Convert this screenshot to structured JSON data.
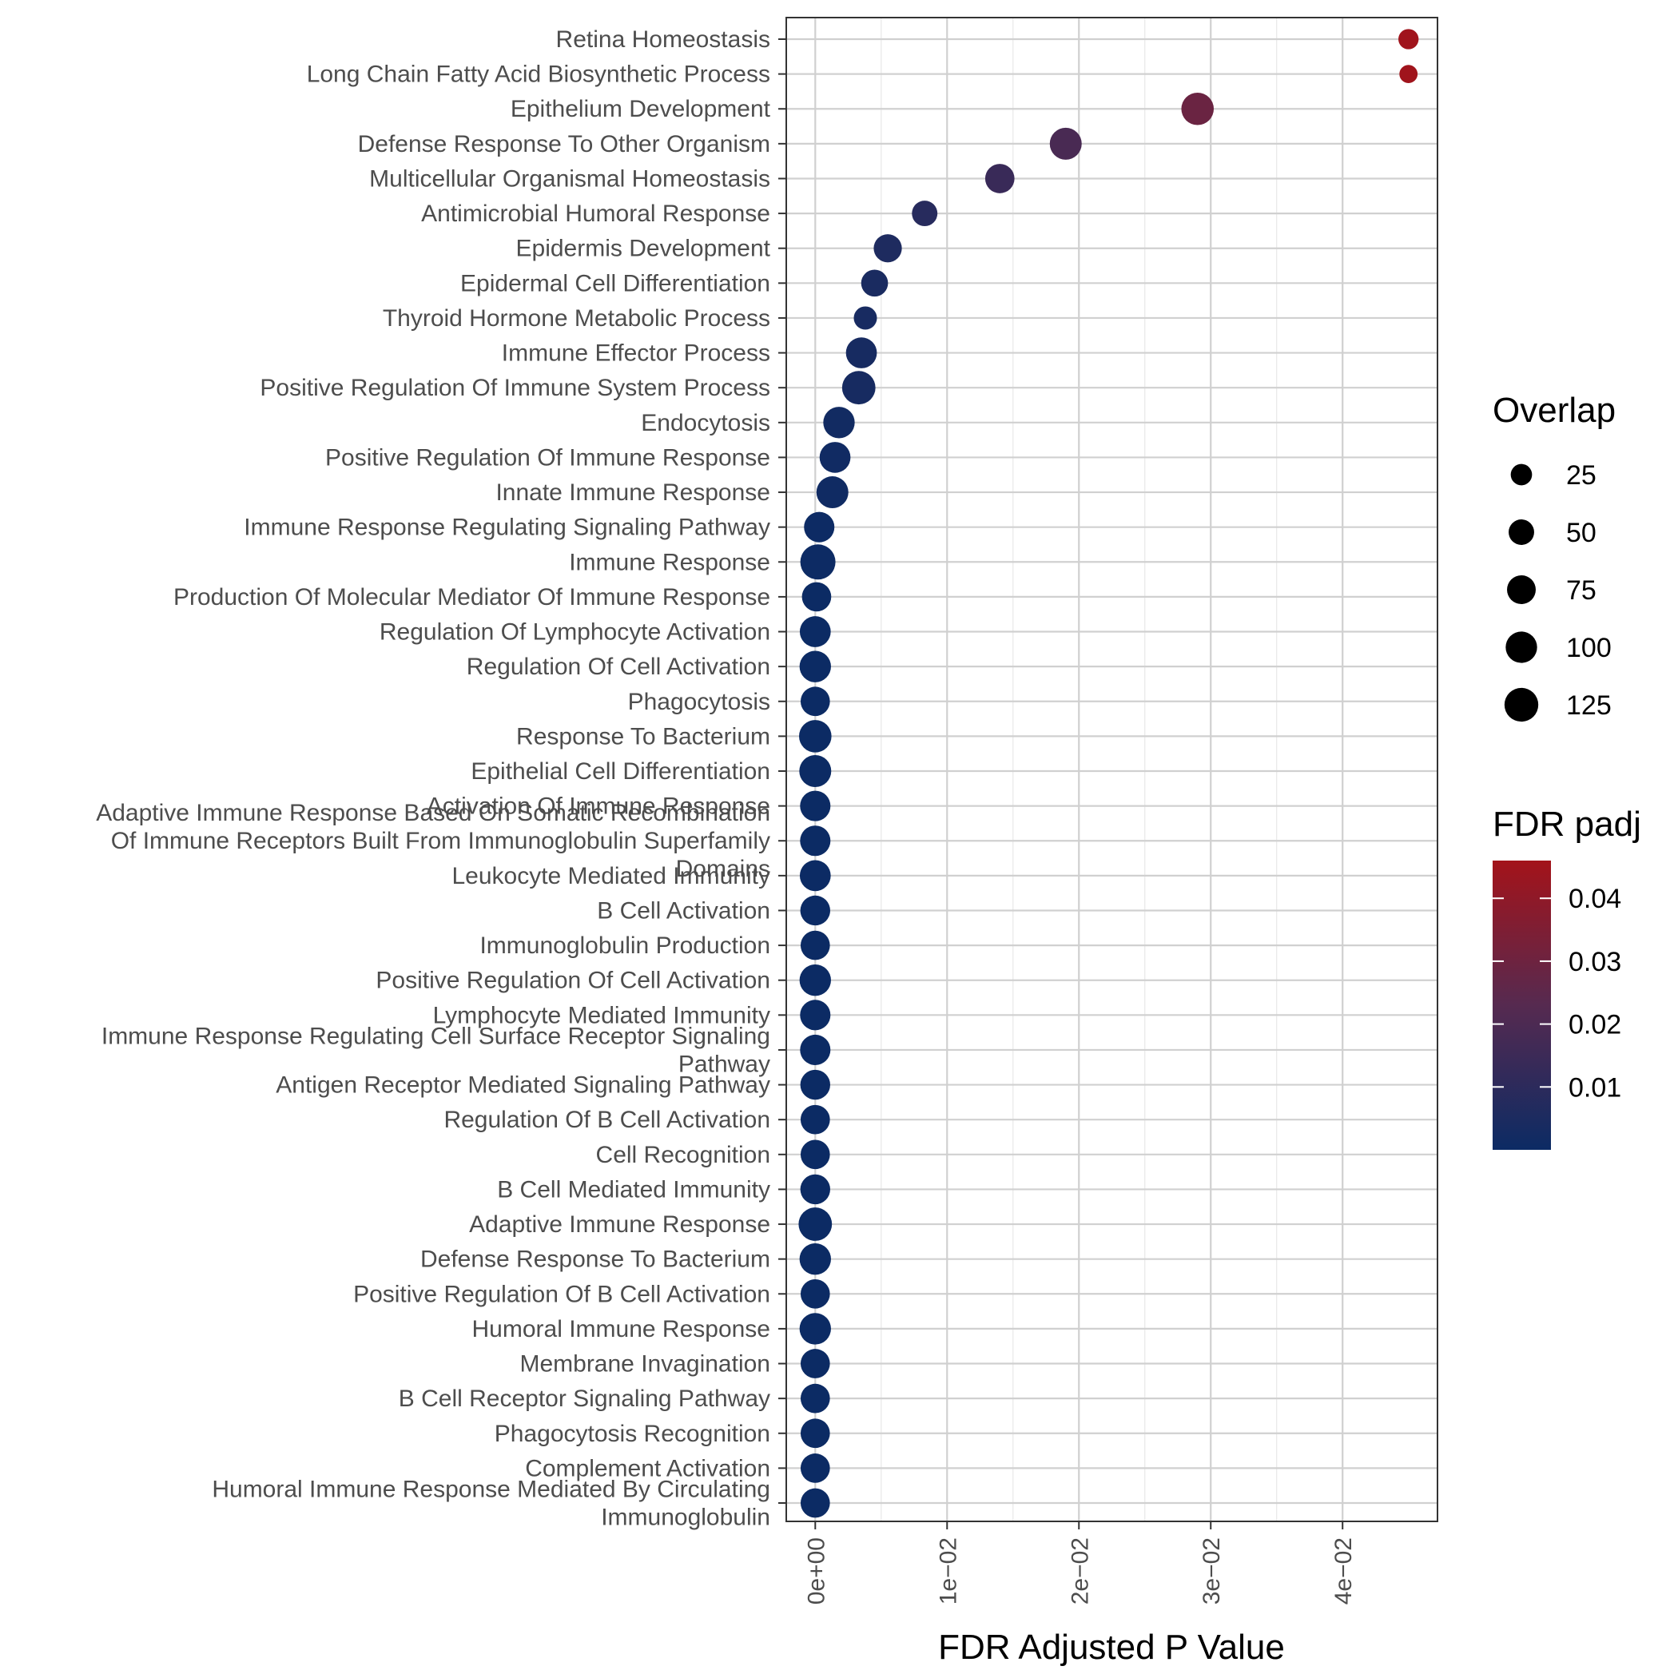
{
  "chart_data": {
    "type": "scatter",
    "xlabel": "FDR Adjusted P Value",
    "xlim": [
      -0.0022,
      0.0472
    ],
    "x_ticks": [
      {
        "value": 0,
        "label": "0e+00"
      },
      {
        "value": 0.01,
        "label": "1e−02"
      },
      {
        "value": 0.02,
        "label": "2e−02"
      },
      {
        "value": 0.03,
        "label": "3e−02"
      },
      {
        "value": 0.04,
        "label": "4e−02"
      }
    ],
    "grid": true,
    "colors": {
      "low": "#0c2b64",
      "mid": "#562a50",
      "high": "#a3131a"
    },
    "size_legend": {
      "title": "Overlap",
      "values": [
        25,
        50,
        75,
        100,
        125
      ]
    },
    "color_legend": {
      "title": "FDR padj",
      "range": [
        0,
        0.046
      ],
      "ticks": [
        {
          "value": 0.04,
          "label": "0.04"
        },
        {
          "value": 0.03,
          "label": "0.03"
        },
        {
          "value": 0.02,
          "label": "0.02"
        },
        {
          "value": 0.01,
          "label": "0.01"
        }
      ]
    },
    "terms": [
      {
        "label": [
          "Retina Homeostasis"
        ],
        "x": 0.045,
        "overlap": 20
      },
      {
        "label": [
          "Long Chain Fatty Acid Biosynthetic Process"
        ],
        "x": 0.045,
        "overlap": 12
      },
      {
        "label": [
          "Epithelium Development"
        ],
        "x": 0.029,
        "overlap": 110
      },
      {
        "label": [
          "Defense Response To Other Organism"
        ],
        "x": 0.019,
        "overlap": 105
      },
      {
        "label": [
          "Multicellular Organismal Homeostasis"
        ],
        "x": 0.014,
        "overlap": 80
      },
      {
        "label": [
          "Antimicrobial Humoral Response"
        ],
        "x": 0.0083,
        "overlap": 50
      },
      {
        "label": [
          "Epidermis Development"
        ],
        "x": 0.0055,
        "overlap": 70
      },
      {
        "label": [
          "Epidermal Cell Differentiation"
        ],
        "x": 0.0045,
        "overlap": 60
      },
      {
        "label": [
          "Thyroid Hormone Metabolic Process"
        ],
        "x": 0.0038,
        "overlap": 35
      },
      {
        "label": [
          "Immune Effector Process"
        ],
        "x": 0.0035,
        "overlap": 95
      },
      {
        "label": [
          "Positive Regulation Of Immune System Process"
        ],
        "x": 0.0033,
        "overlap": 120
      },
      {
        "label": [
          "Endocytosis"
        ],
        "x": 0.0018,
        "overlap": 100
      },
      {
        "label": [
          "Positive Regulation Of Immune Response"
        ],
        "x": 0.0015,
        "overlap": 95
      },
      {
        "label": [
          "Innate Immune Response"
        ],
        "x": 0.0013,
        "overlap": 105
      },
      {
        "label": [
          "Immune Response Regulating Signaling Pathway"
        ],
        "x": 0.0003,
        "overlap": 90
      },
      {
        "label": [
          "Immune Response"
        ],
        "x": 0.0002,
        "overlap": 140
      },
      {
        "label": [
          "Production Of Molecular Mediator Of Immune Response"
        ],
        "x": 0.0001,
        "overlap": 80
      },
      {
        "label": [
          "Regulation Of Lymphocyte Activation"
        ],
        "x": 0,
        "overlap": 95
      },
      {
        "label": [
          "Regulation Of Cell Activation"
        ],
        "x": 0,
        "overlap": 100
      },
      {
        "label": [
          "Phagocytosis"
        ],
        "x": 0,
        "overlap": 80
      },
      {
        "label": [
          "Response To Bacterium"
        ],
        "x": 0,
        "overlap": 110
      },
      {
        "label": [
          "Epithelial Cell Differentiation"
        ],
        "x": 0,
        "overlap": 105
      },
      {
        "label": [
          "Activation Of Immune Response"
        ],
        "x": 0,
        "overlap": 90
      },
      {
        "label": [
          "Adaptive Immune Response Based On Somatic Recombination",
          "Of Immune Receptors Built From Immunoglobulin Superfamily",
          "Domains"
        ],
        "x": 0,
        "overlap": 90
      },
      {
        "label": [
          "Leukocyte Mediated Immunity"
        ],
        "x": 0,
        "overlap": 95
      },
      {
        "label": [
          "B Cell Activation"
        ],
        "x": 0,
        "overlap": 85
      },
      {
        "label": [
          "Immunoglobulin Production"
        ],
        "x": 0,
        "overlap": 80
      },
      {
        "label": [
          "Positive Regulation Of Cell Activation"
        ],
        "x": 0,
        "overlap": 100
      },
      {
        "label": [
          "Lymphocyte Mediated Immunity"
        ],
        "x": 0,
        "overlap": 90
      },
      {
        "label": [
          "Immune Response Regulating Cell Surface Receptor Signaling",
          "Pathway"
        ],
        "x": 0,
        "overlap": 90
      },
      {
        "label": [
          "Antigen Receptor Mediated Signaling Pathway"
        ],
        "x": 0,
        "overlap": 85
      },
      {
        "label": [
          "Regulation Of B Cell Activation"
        ],
        "x": 0,
        "overlap": 80
      },
      {
        "label": [
          "Cell Recognition"
        ],
        "x": 0,
        "overlap": 80
      },
      {
        "label": [
          "B Cell Mediated Immunity"
        ],
        "x": 0,
        "overlap": 85
      },
      {
        "label": [
          "Adaptive Immune Response"
        ],
        "x": 0,
        "overlap": 120
      },
      {
        "label": [
          "Defense Response To Bacterium"
        ],
        "x": 0,
        "overlap": 100
      },
      {
        "label": [
          "Positive Regulation Of B Cell Activation"
        ],
        "x": 0,
        "overlap": 80
      },
      {
        "label": [
          "Humoral Immune Response"
        ],
        "x": 0,
        "overlap": 100
      },
      {
        "label": [
          "Membrane Invagination"
        ],
        "x": 0,
        "overlap": 80
      },
      {
        "label": [
          "B Cell Receptor Signaling Pathway"
        ],
        "x": 0,
        "overlap": 80
      },
      {
        "label": [
          "Phagocytosis Recognition"
        ],
        "x": 0,
        "overlap": 80
      },
      {
        "label": [
          "Complement Activation"
        ],
        "x": 0,
        "overlap": 80
      },
      {
        "label": [
          "Humoral Immune Response Mediated By Circulating",
          "Immunoglobulin"
        ],
        "x": 0,
        "overlap": 80
      }
    ]
  }
}
